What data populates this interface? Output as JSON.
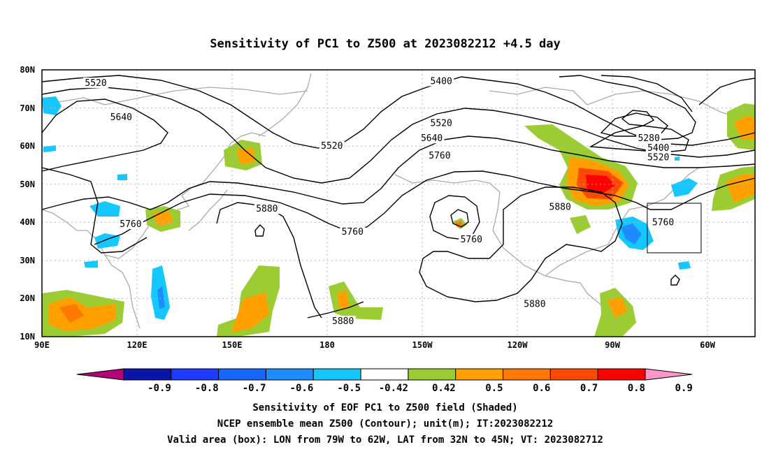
{
  "title": "Sensitivity of PC1 to Z500 at 2023082212 +4.5 day",
  "map": {
    "lat_labels": [
      "80N",
      "70N",
      "60N",
      "50N",
      "40N",
      "30N",
      "20N",
      "10N"
    ],
    "lon_labels": [
      "90E",
      "120E",
      "150E",
      "180",
      "150W",
      "120W",
      "90W",
      "60W"
    ],
    "lon_range": [
      90,
      315
    ],
    "lat_range": [
      10,
      80
    ],
    "grid": "dotted",
    "contour_labels": [
      {
        "text": "5520",
        "lon": 107,
        "lat": 76.5
      },
      {
        "text": "5640",
        "lon": 115,
        "lat": 67.5
      },
      {
        "text": "5520",
        "lon": 181.5,
        "lat": 60
      },
      {
        "text": "5400",
        "lon": 216,
        "lat": 77
      },
      {
        "text": "5520",
        "lon": 216,
        "lat": 66
      },
      {
        "text": "5640",
        "lon": 213,
        "lat": 62
      },
      {
        "text": "5760",
        "lon": 215.5,
        "lat": 57.5
      },
      {
        "text": "5880",
        "lon": 161,
        "lat": 43.5
      },
      {
        "text": "5760",
        "lon": 118,
        "lat": 39.5
      },
      {
        "text": "5760",
        "lon": 188,
        "lat": 37.5
      },
      {
        "text": "5760",
        "lon": 225.5,
        "lat": 35.5
      },
      {
        "text": "5880",
        "lon": 253.5,
        "lat": 44
      },
      {
        "text": "5760",
        "lon": 286,
        "lat": 40
      },
      {
        "text": "5280",
        "lon": 281.5,
        "lat": 62
      },
      {
        "text": "5400",
        "lon": 284.5,
        "lat": 59.5
      },
      {
        "text": "5520",
        "lon": 284.5,
        "lat": 57
      },
      {
        "text": "5880",
        "lon": 245.5,
        "lat": 18.5
      },
      {
        "text": "5880",
        "lon": 185,
        "lat": 14
      }
    ],
    "valid_box": {
      "lon_min": 281,
      "lon_max": 298,
      "lat_min": 32,
      "lat_max": 45
    }
  },
  "colorbar": {
    "labels": [
      "-0.9",
      "-0.8",
      "-0.7",
      "-0.6",
      "-0.5",
      "-0.42",
      "0.42",
      "0.5",
      "0.6",
      "0.7",
      "0.8",
      "0.9"
    ],
    "colors": [
      "#b4007a",
      "#0a14a8",
      "#1e3cff",
      "#1466ff",
      "#1e8cff",
      "#14c8ff",
      "#ffffff",
      "#9bcd32",
      "#ffa000",
      "#ff7800",
      "#ff4b00",
      "#ff0000",
      "#ff96c8"
    ]
  },
  "captions": [
    "Sensitivity of EOF PC1 to Z500 field (Shaded)",
    "NCEP ensemble mean Z500 (Contour); unit(m); IT:2023082212",
    "Valid area (box): LON from 79W to 62W, LAT from 32N to 45N; VT: 2023082712"
  ]
}
